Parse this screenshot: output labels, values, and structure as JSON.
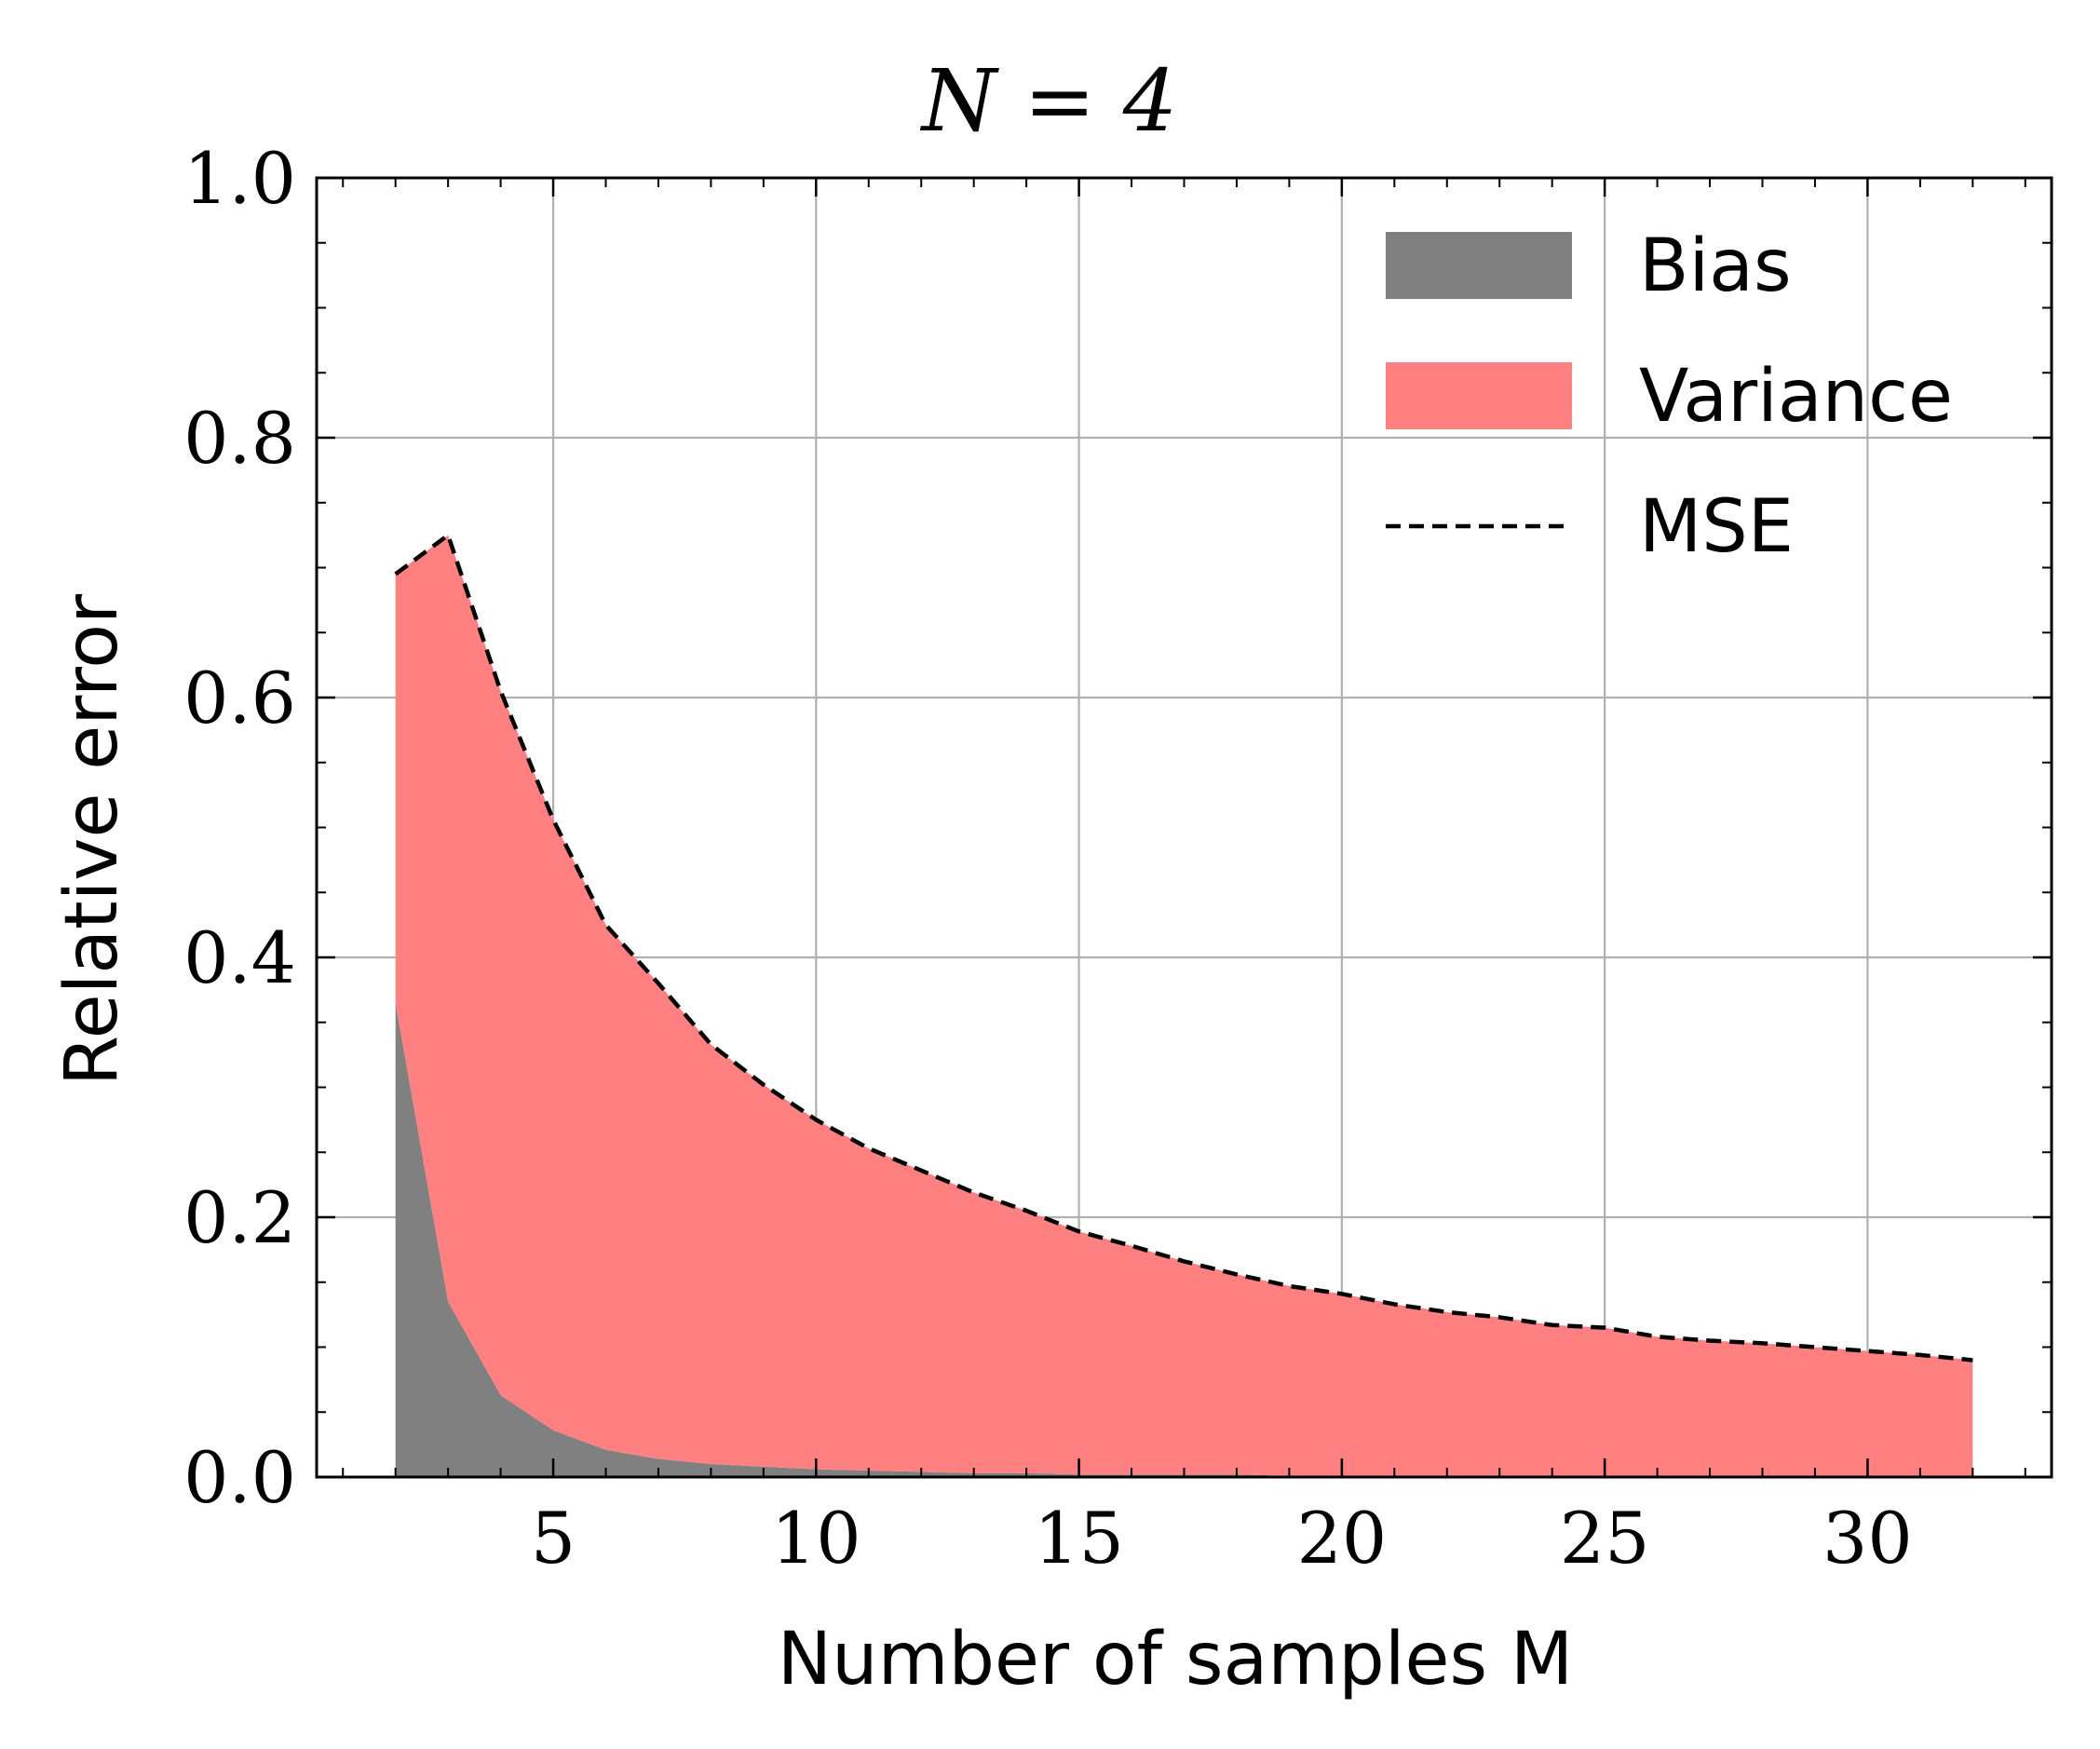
{
  "chart_data": {
    "type": "area",
    "title": "N = 4",
    "xlabel": "Number of samples M",
    "ylabel": "Relative error",
    "xlim": [
      0.5,
      33.5
    ],
    "ylim": [
      0.0,
      1.0
    ],
    "x_ticks": [
      5,
      10,
      15,
      20,
      25,
      30
    ],
    "y_ticks": [
      0.0,
      0.2,
      0.4,
      0.6,
      0.8,
      1.0
    ],
    "y_tick_labels": [
      "0.0",
      "0.2",
      "0.4",
      "0.6",
      "0.8",
      "1.0"
    ],
    "grid": true,
    "legend_position": "top-right",
    "x": [
      2,
      3,
      4,
      5,
      6,
      7,
      8,
      9,
      10,
      11,
      12,
      13,
      14,
      15,
      16,
      17,
      18,
      19,
      20,
      21,
      22,
      23,
      24,
      25,
      26,
      27,
      28,
      29,
      30,
      31,
      32
    ],
    "series": [
      {
        "name": "Bias",
        "style": "filled-area",
        "color": "#808080",
        "values": [
          0.365,
          0.135,
          0.063,
          0.036,
          0.021,
          0.014,
          0.01,
          0.008,
          0.006,
          0.005,
          0.004,
          0.003,
          0.003,
          0.002,
          0.002,
          0.002,
          0.002,
          0.001,
          0.001,
          0.001,
          0.001,
          0.001,
          0.001,
          0.001,
          0.001,
          0.001,
          0.001,
          0.001,
          0.001,
          0.001,
          0.001
        ]
      },
      {
        "name": "Variance",
        "style": "filled-area",
        "color": "#ff8080",
        "values": [
          0.33,
          0.59,
          0.542,
          0.47,
          0.404,
          0.366,
          0.323,
          0.294,
          0.269,
          0.248,
          0.232,
          0.216,
          0.202,
          0.187,
          0.176,
          0.164,
          0.154,
          0.146,
          0.14,
          0.132,
          0.126,
          0.122,
          0.116,
          0.114,
          0.107,
          0.104,
          0.102,
          0.099,
          0.096,
          0.093,
          0.089
        ]
      },
      {
        "name": "MSE",
        "style": "dashed-line",
        "color": "#000000",
        "values": [
          0.695,
          0.725,
          0.605,
          0.506,
          0.425,
          0.38,
          0.333,
          0.302,
          0.275,
          0.253,
          0.236,
          0.219,
          0.205,
          0.189,
          0.178,
          0.166,
          0.156,
          0.147,
          0.141,
          0.133,
          0.127,
          0.123,
          0.117,
          0.115,
          0.108,
          0.105,
          0.103,
          0.1,
          0.097,
          0.094,
          0.09
        ]
      }
    ]
  }
}
